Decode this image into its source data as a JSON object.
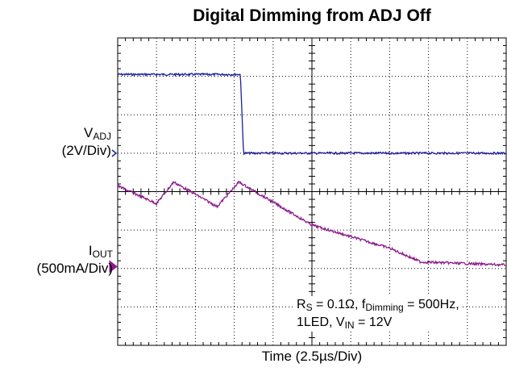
{
  "chart_data": {
    "type": "line",
    "title": "Digital Dimming from ADJ Off",
    "xlabel": "Time (2.5µs/Div)",
    "x_unit": "µs",
    "x_range": [
      0,
      25
    ],
    "x_divisions": 10,
    "y_divisions": 8,
    "grid": true,
    "series": [
      {
        "name": "VADJ",
        "label_main": "V",
        "label_sub": "ADJ",
        "scale": "(2V/Div)",
        "color": "#1f1f9a",
        "unit": "V",
        "ground_div": 5.0,
        "points": [
          [
            0,
            4.1
          ],
          [
            7.9,
            4.1
          ],
          [
            8.1,
            0.0
          ],
          [
            25,
            0.0
          ]
        ]
      },
      {
        "name": "IOUT",
        "label_main": "I",
        "label_sub": "OUT",
        "scale": "(500mA/Div)",
        "color": "#8b1a8b",
        "unit": "A",
        "ground_div": 2.05,
        "points": [
          [
            0,
            1.05
          ],
          [
            2.5,
            0.82
          ],
          [
            3.6,
            1.1
          ],
          [
            6.4,
            0.78
          ],
          [
            7.8,
            1.1
          ],
          [
            12.5,
            0.54
          ],
          [
            17.5,
            0.24
          ],
          [
            19.5,
            0.06
          ],
          [
            25,
            0.02
          ]
        ]
      }
    ]
  },
  "annotation": {
    "line1_a": "R",
    "line1_b": "S",
    "line1_c": " = 0.1Ω, f",
    "line1_d": "Dimming",
    "line1_e": " = 500Hz,",
    "line2_a": "1LED, V",
    "line2_b": "IN",
    "line2_c": " = 12V"
  }
}
